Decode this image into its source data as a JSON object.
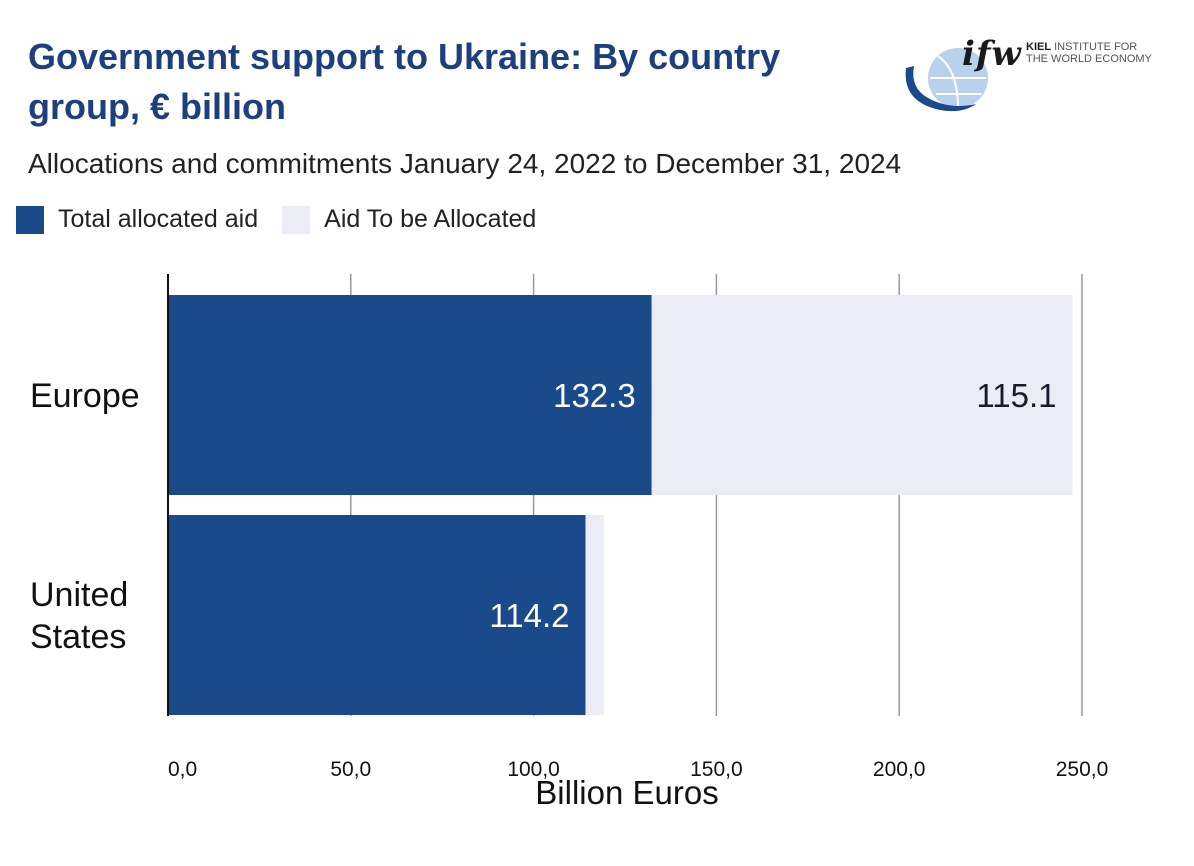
{
  "title": "Government support to Ukraine: By country group, € billion",
  "subtitle": "Allocations and commitments January 24, 2022 to December 31, 2024",
  "logo": {
    "mark": "ifw",
    "line1_bold": "KIEL",
    "line1_rest": " INSTITUTE FOR",
    "line2": "THE WORLD ECONOMY"
  },
  "colors": {
    "allocated": "#1b4a8b",
    "to_be_allocated": "#ececf6",
    "title": "#1d3f7e",
    "grid": "#9a9a9a"
  },
  "chart_data": {
    "type": "bar",
    "orientation": "horizontal",
    "stacked": true,
    "title": "Government support to Ukraine: By country group, € billion",
    "subtitle": "Allocations and commitments January 24, 2022 to December 31, 2024",
    "categories": [
      {
        "lines": [
          "Europe"
        ]
      },
      {
        "lines": [
          "United",
          "States"
        ]
      }
    ],
    "series": [
      {
        "name": "Total allocated aid",
        "values": [
          132.3,
          114.2
        ],
        "labels": [
          "132.3",
          "114.2"
        ]
      },
      {
        "name": "Aid To be Allocated",
        "values": [
          115.1,
          5.0
        ],
        "labels": [
          "115.1",
          ""
        ]
      }
    ],
    "xlabel": "Billion Euros",
    "ylabel": "",
    "xlim": [
      0,
      250
    ],
    "xticks": [
      0,
      50,
      100,
      150,
      200,
      250
    ],
    "xtick_labels": [
      "0,0",
      "50,0",
      "100,0",
      "150,0",
      "200,0",
      "250,0"
    ],
    "grid": true,
    "legend_position": "top-left"
  }
}
